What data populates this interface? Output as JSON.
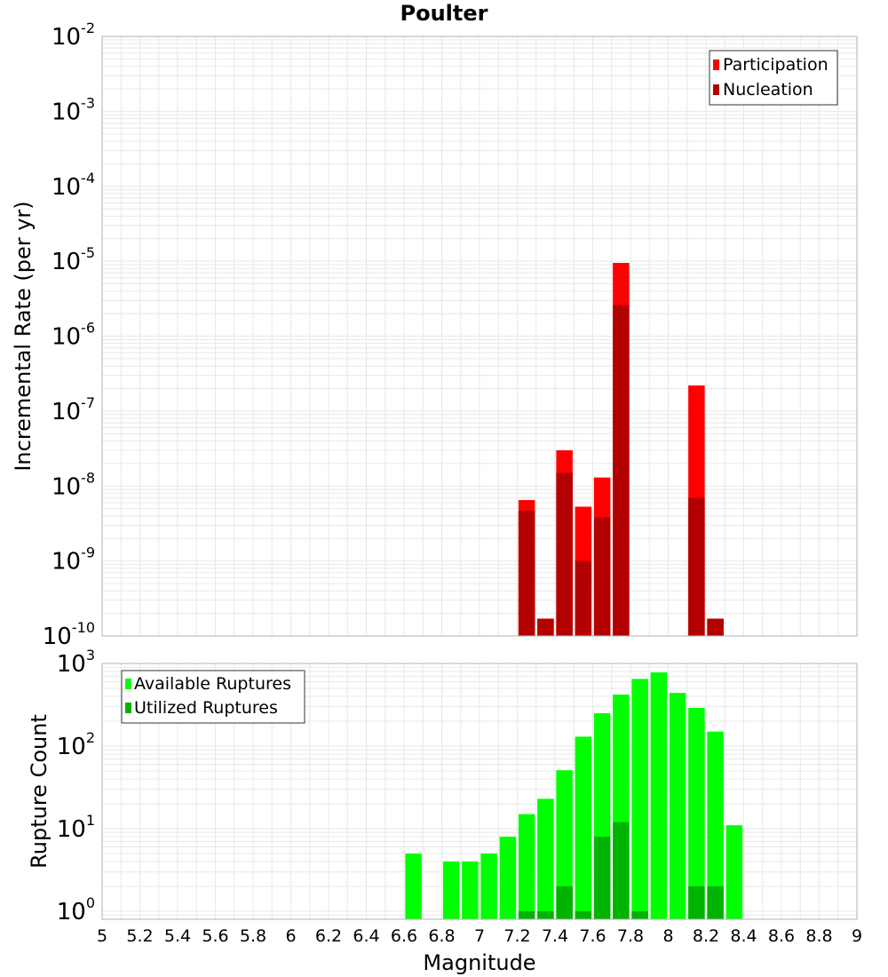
{
  "title": "Poulter",
  "xlabel": "Magnitude",
  "x_ticks": [
    "5",
    "5.2",
    "5.4",
    "5.6",
    "5.8",
    "6",
    "6.2",
    "6.4",
    "6.6",
    "6.8",
    "7",
    "7.2",
    "7.4",
    "7.6",
    "7.8",
    "8",
    "8.2",
    "8.4",
    "8.6",
    "8.8",
    "9"
  ],
  "colors": {
    "participation": "#ff0000",
    "nucleation": "#b30000",
    "available": "#00ff00",
    "utilized": "#00b300",
    "grid": "#e8e8e8",
    "frame": "#b0b0b0"
  },
  "chart_data": [
    {
      "type": "bar",
      "ylabel": "Incremental Rate (per yr)",
      "yscale": "log",
      "ylim": [
        1e-10,
        0.01
      ],
      "xlim": [
        5,
        9
      ],
      "y_ticks": [
        {
          "base": "10",
          "exp": "-2"
        },
        {
          "base": "10",
          "exp": "-3"
        },
        {
          "base": "10",
          "exp": "-4"
        },
        {
          "base": "10",
          "exp": "-5"
        },
        {
          "base": "10",
          "exp": "-6"
        },
        {
          "base": "10",
          "exp": "-7"
        },
        {
          "base": "10",
          "exp": "-8"
        },
        {
          "base": "10",
          "exp": "-9"
        },
        {
          "base": "10",
          "exp": "-10"
        }
      ],
      "legend_position": "top-right",
      "x": [
        7.25,
        7.35,
        7.45,
        7.55,
        7.65,
        7.75,
        8.15,
        8.25
      ],
      "series": [
        {
          "name": "Participation",
          "values": [
            6.5e-09,
            1.7e-10,
            3e-08,
            5.3e-09,
            1.3e-08,
            9.5e-06,
            2.2e-07,
            1.7e-10
          ]
        },
        {
          "name": "Nucleation",
          "values": [
            4.7e-09,
            1.7e-10,
            1.5e-08,
            1e-09,
            3.8e-09,
            2.6e-06,
            7e-09,
            1.7e-10
          ]
        }
      ]
    },
    {
      "type": "bar",
      "ylabel": "Rupture Count",
      "yscale": "log",
      "ylim": [
        0.8,
        1000
      ],
      "xlim": [
        5,
        9
      ],
      "y_ticks": [
        {
          "base": "10",
          "exp": "3",
          "value": 1000
        },
        {
          "base": "10",
          "exp": "2",
          "value": 100
        },
        {
          "base": "10",
          "exp": "1",
          "value": 10
        },
        {
          "base": "10",
          "exp": "0",
          "value": 1
        }
      ],
      "legend_position": "top-left",
      "x": [
        6.65,
        6.85,
        6.95,
        7.05,
        7.15,
        7.25,
        7.35,
        7.45,
        7.55,
        7.65,
        7.75,
        7.85,
        7.95,
        8.05,
        8.15,
        8.25,
        8.35
      ],
      "series": [
        {
          "name": "Available Ruptures",
          "values": [
            5,
            4,
            4,
            5,
            8,
            15,
            23,
            51,
            130,
            250,
            420,
            650,
            780,
            440,
            290,
            150,
            11
          ]
        },
        {
          "name": "Utilized Ruptures",
          "values": [
            0,
            0,
            0,
            0,
            0,
            1,
            1,
            2,
            1,
            8,
            12,
            1,
            0,
            0,
            2,
            2,
            0
          ]
        }
      ]
    }
  ]
}
